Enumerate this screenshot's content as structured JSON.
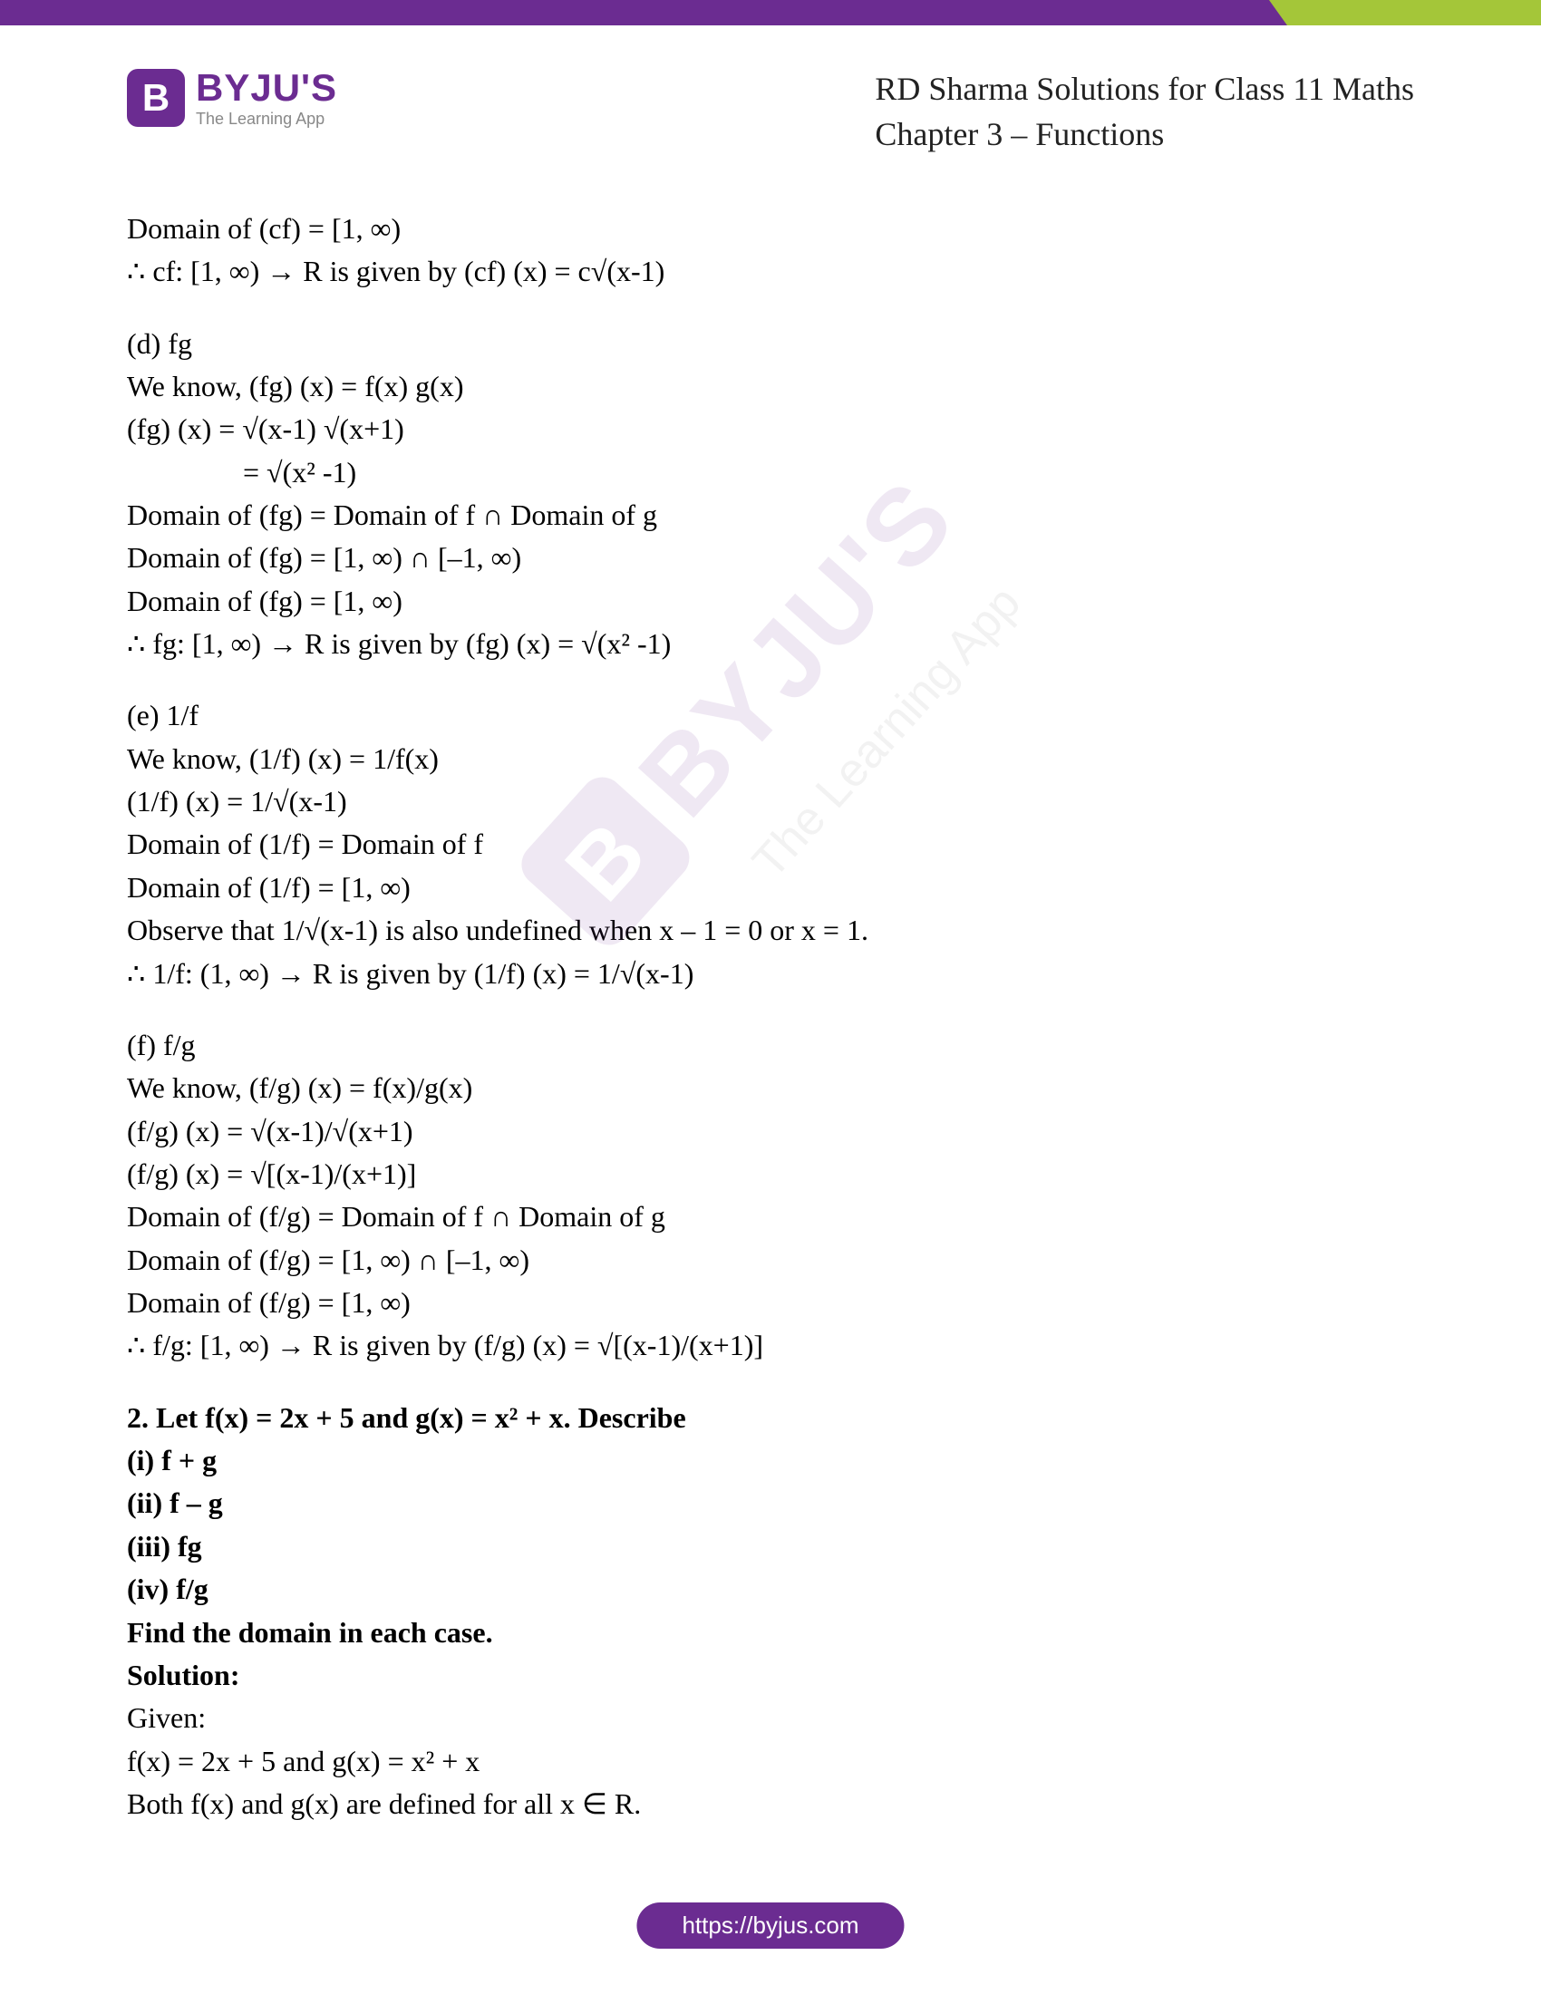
{
  "colors": {
    "brand_purple": "#6b2c91",
    "brand_green": "#a4c639",
    "text": "#000000",
    "tagline_gray": "#888888",
    "background": "#ffffff"
  },
  "typography": {
    "body_fontsize": 32,
    "header_title_fontsize": 36,
    "logo_name_fontsize": 42,
    "logo_tagline_fontsize": 18
  },
  "logo": {
    "icon_letter": "B",
    "name": "BYJU'S",
    "tagline": "The Learning App"
  },
  "header": {
    "line1": "RD Sharma Solutions for Class 11 Maths",
    "line2": "Chapter 3 – Functions"
  },
  "watermark": {
    "icon_letter": "B",
    "name": "BYJU'S",
    "tagline": "The Learning App"
  },
  "content": {
    "l01": "Domain of (cf) = [1, ∞)",
    "l02": "∴ cf: [1, ∞) → R is given by (cf) (x) = c√(x-1)",
    "l03": "(d) fg",
    "l04": "We know, (fg) (x) = f(x) g(x)",
    "l05": "(fg) (x) = √(x-1) √(x+1)",
    "l06": "= √(x² -1)",
    "l07": "Domain of (fg) = Domain of f ∩ Domain of g",
    "l08": "Domain of (fg) = [1, ∞) ∩ [–1, ∞)",
    "l09": "Domain of (fg) = [1, ∞)",
    "l10": "∴ fg: [1, ∞) → R is given by (fg) (x) = √(x² -1)",
    "l11": "(e) 1/f",
    "l12": "We know, (1/f) (x) = 1/f(x)",
    "l13": "(1/f) (x) = 1/√(x-1)",
    "l14": "Domain of (1/f) = Domain of f",
    "l15": "Domain of (1/f) = [1, ∞)",
    "l16": "Observe that 1/√(x-1) is also undefined when x – 1 = 0 or x = 1.",
    "l17": "∴ 1/f: (1, ∞) → R is given by (1/f) (x) = 1/√(x-1)",
    "l18": "(f) f/g",
    "l19": "We know, (f/g) (x) = f(x)/g(x)",
    "l20": "(f/g) (x) = √(x-1)/√(x+1)",
    "l21": "(f/g) (x) = √[(x-1)/(x+1)]",
    "l22": "Domain of (f/g) = Domain of f ∩ Domain of g",
    "l23": "Domain of (f/g) = [1, ∞) ∩ [–1, ∞)",
    "l24": "Domain of (f/g) = [1, ∞)",
    "l25": "∴ f/g: [1, ∞) → R is given by (f/g) (x) = √[(x-1)/(x+1)]",
    "q2_title": "2. Let f(x) = 2x + 5 and g(x) = x² + x. Describe",
    "q2_i": "(i) f + g",
    "q2_ii": "(ii) f – g",
    "q2_iii": "(iii) fg",
    "q2_iv": "(iv) f/g",
    "q2_find": "Find the domain in each case.",
    "q2_solution": "Solution:",
    "q2_given": "Given:",
    "q2_l1": "f(x) = 2x + 5 and g(x) = x² + x",
    "q2_l2": "Both f(x) and g(x) are defined for all x ∈ R."
  },
  "footer": {
    "url": "https://byjus.com"
  }
}
